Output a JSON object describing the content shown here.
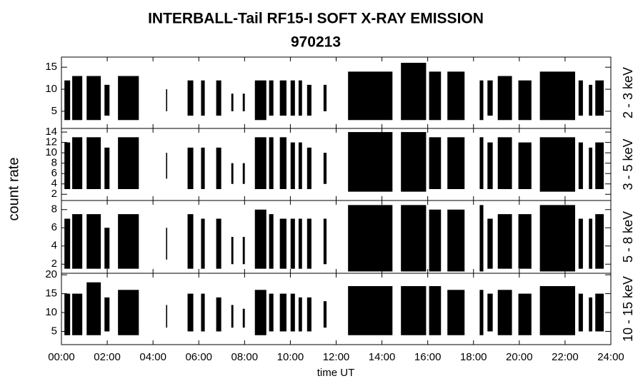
{
  "chart_data": {
    "type": "range-panels",
    "title": "INTERBALL-Tail RF15-I SOFT X-RAY EMISSION",
    "subtitle": "970213",
    "xlabel": "time UT",
    "ylabel": "count rate",
    "color": "#000000",
    "xlim": [
      0,
      24
    ],
    "xticks": [
      {
        "value": 0,
        "label": "00:00"
      },
      {
        "value": 2,
        "label": "02:00"
      },
      {
        "value": 4,
        "label": "04:00"
      },
      {
        "value": 6,
        "label": "06:00"
      },
      {
        "value": 8,
        "label": "08:00"
      },
      {
        "value": 10,
        "label": "10:00"
      },
      {
        "value": 12,
        "label": "12:00"
      },
      {
        "value": 14,
        "label": "14:00"
      },
      {
        "value": 16,
        "label": "16:00"
      },
      {
        "value": 18,
        "label": "18:00"
      },
      {
        "value": 20,
        "label": "20:00"
      },
      {
        "value": 22,
        "label": "22:00"
      },
      {
        "value": 24,
        "label": "24:00"
      }
    ],
    "bursts": [
      [
        0.13,
        0.38
      ],
      [
        0.47,
        0.91
      ],
      [
        1.1,
        1.72
      ],
      [
        1.88,
        2.1
      ],
      [
        2.47,
        3.38
      ],
      [
        4.57,
        4.62
      ],
      [
        5.51,
        5.76
      ],
      [
        6.1,
        6.26
      ],
      [
        6.76,
        6.98
      ],
      [
        7.42,
        7.51
      ],
      [
        7.92,
        8.01
      ],
      [
        8.45,
        8.95
      ],
      [
        9.07,
        9.26
      ],
      [
        9.54,
        9.83
      ],
      [
        10.01,
        10.2
      ],
      [
        10.36,
        10.51
      ],
      [
        10.73,
        10.92
      ],
      [
        11.45,
        11.58
      ],
      [
        12.52,
        14.46
      ],
      [
        14.83,
        15.93
      ],
      [
        16.06,
        16.58
      ],
      [
        16.86,
        17.61
      ],
      [
        18.27,
        18.43
      ],
      [
        18.61,
        18.84
      ],
      [
        19.06,
        19.68
      ],
      [
        19.96,
        20.53
      ],
      [
        20.9,
        22.44
      ],
      [
        22.59,
        22.78
      ],
      [
        23.04,
        23.19
      ],
      [
        23.32,
        23.69
      ]
    ],
    "panels": [
      {
        "name": "2 - 3 keV",
        "ylim": [
          1.1,
          17.3
        ],
        "yticks": [
          5,
          10,
          15
        ],
        "low": [
          3,
          3,
          3,
          4,
          3,
          5,
          4,
          4,
          4,
          5,
          5,
          3,
          4,
          4,
          4,
          4,
          4,
          5,
          3,
          3,
          3,
          3,
          3,
          4,
          3,
          3,
          3,
          4,
          4,
          4
        ],
        "high": [
          12,
          13,
          13,
          11,
          13,
          10,
          12,
          12,
          12,
          9,
          9,
          12,
          12,
          12,
          12,
          12,
          11,
          11,
          14,
          16,
          14,
          14,
          12,
          12,
          13,
          12,
          14,
          12,
          11,
          12
        ]
      },
      {
        "name": "3 - 5 keV",
        "ylim": [
          0.8,
          14.7
        ],
        "yticks": [
          2,
          4,
          6,
          8,
          10,
          12,
          14
        ],
        "low": [
          3,
          3,
          3,
          3,
          3,
          5,
          3,
          3,
          3,
          4,
          4,
          3,
          3,
          3,
          3,
          3,
          3,
          4,
          2.5,
          2.5,
          3,
          3,
          3,
          3,
          3,
          3,
          2.5,
          3,
          3,
          3
        ],
        "high": [
          12,
          13,
          13,
          11,
          13,
          10,
          11,
          11,
          11,
          8,
          8,
          13,
          13,
          13,
          12,
          12,
          11,
          10,
          14,
          14,
          13,
          13,
          13,
          12,
          13,
          12,
          13,
          12,
          11,
          12
        ]
      },
      {
        "name": "5 - 8 keV",
        "ylim": [
          1,
          9
        ],
        "yticks": [
          2,
          4,
          6,
          8
        ],
        "low": [
          1.5,
          1.5,
          1.5,
          1.5,
          1.5,
          2.5,
          1.5,
          1.5,
          1.5,
          2,
          2,
          1.5,
          1.5,
          1.5,
          1.5,
          1.5,
          1.5,
          2,
          1.2,
          1.2,
          1.2,
          1.2,
          1.2,
          1.5,
          1.5,
          1.5,
          1.2,
          1.5,
          1.5,
          1.5
        ],
        "high": [
          7,
          7.5,
          7.5,
          6,
          7.5,
          6,
          7.5,
          7,
          7,
          5,
          5,
          8,
          7.5,
          7,
          7,
          7,
          7,
          7,
          8.5,
          8.5,
          8,
          8,
          8.5,
          7,
          7.5,
          7.5,
          8.5,
          7,
          7,
          7.5
        ]
      },
      {
        "name": "10 - 15 keV",
        "ylim": [
          1.5,
          20.4
        ],
        "yticks": [
          5,
          10,
          15,
          20
        ],
        "low": [
          4,
          4,
          4,
          5,
          4,
          6,
          5,
          5,
          5,
          6,
          6,
          4,
          5,
          5,
          5,
          5,
          5,
          6,
          4,
          4,
          4,
          4,
          4,
          5,
          4,
          4,
          4,
          5,
          5,
          5
        ],
        "high": [
          15,
          15,
          18,
          14,
          16,
          12,
          15,
          15,
          14,
          12,
          11,
          16,
          15,
          15,
          15,
          14,
          14,
          13,
          17,
          17,
          17,
          16,
          16,
          15,
          16,
          15,
          17,
          15,
          14,
          15
        ]
      }
    ]
  }
}
